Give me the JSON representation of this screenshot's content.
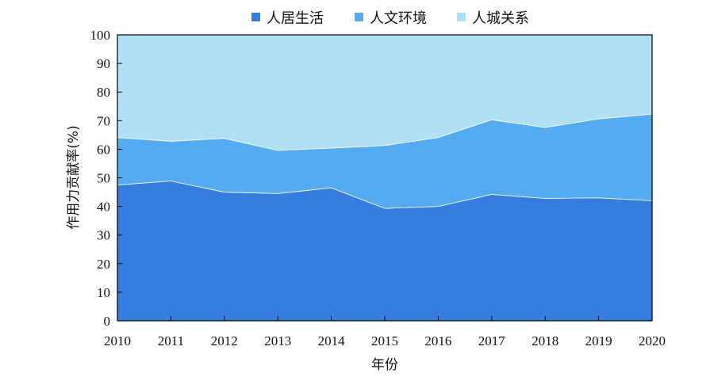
{
  "chart_data": {
    "type": "area",
    "stacked": true,
    "x": [
      "2010",
      "2011",
      "2012",
      "2013",
      "2014",
      "2015",
      "2016",
      "2017",
      "2018",
      "2019",
      "2020"
    ],
    "series": [
      {
        "name": "人居生活",
        "color": "#357EE0",
        "values": [
          47.5,
          48.9,
          45.0,
          44.5,
          46.5,
          39.3,
          40.0,
          44.2,
          42.8,
          43.0,
          42.0
        ]
      },
      {
        "name": "人文环境",
        "color": "#55ABF0",
        "values": [
          16.6,
          13.9,
          18.8,
          15.1,
          13.9,
          22.0,
          24.1,
          26.1,
          24.8,
          27.6,
          30.3
        ]
      },
      {
        "name": "人城关系",
        "color": "#B1E0F4",
        "values": [
          35.9,
          37.2,
          36.2,
          40.4,
          39.6,
          38.7,
          35.9,
          29.7,
          32.4,
          29.4,
          27.7
        ]
      }
    ],
    "xlabel": "年份",
    "ylabel": "作用力贡献率(%)",
    "ylim": [
      0,
      100
    ],
    "yticks": [
      0,
      10,
      20,
      30,
      40,
      50,
      60,
      70,
      80,
      90,
      100
    ],
    "legend_position": "top-center",
    "grid": false
  }
}
